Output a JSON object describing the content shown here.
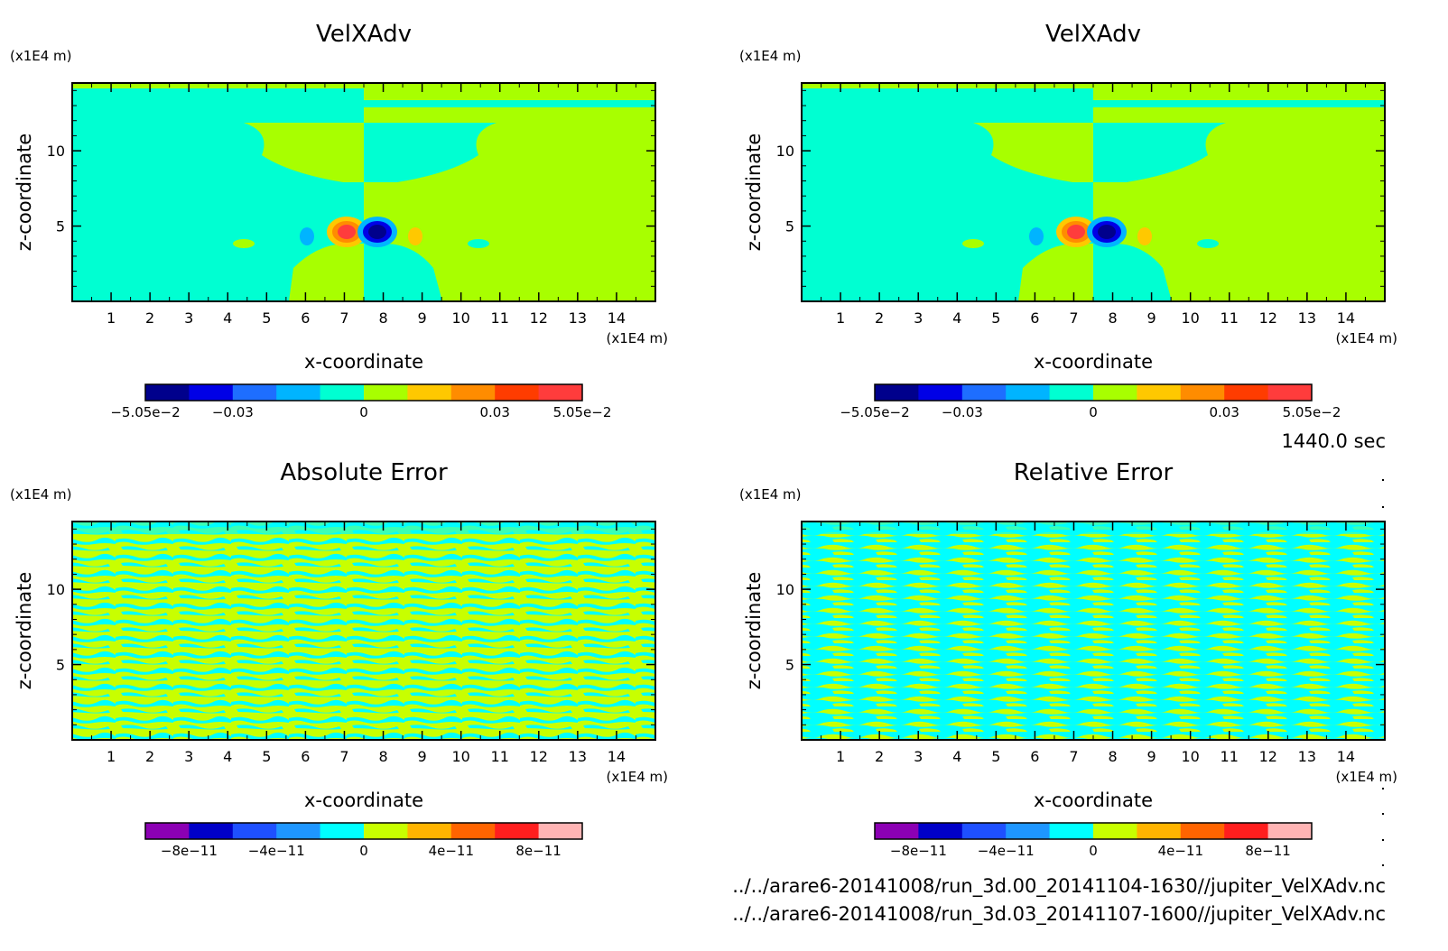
{
  "chart_data": [
    {
      "type": "heatmap",
      "title": "VelXAdv",
      "xlabel": "x-coordinate",
      "ylabel": "z-coordinate",
      "x_unit": "(x1E4 m)",
      "y_unit": "(x1E4 m)",
      "xlim": [
        0,
        15
      ],
      "ylim": [
        0,
        14.5
      ],
      "x_ticks": [
        "1",
        "2",
        "3",
        "4",
        "5",
        "6",
        "7",
        "8",
        "9",
        "10",
        "11",
        "12",
        "13",
        "14"
      ],
      "y_ticks": [
        "5",
        "10"
      ],
      "colorbar_labels": [
        "−5.05e−2",
        "−0.03",
        "0",
        "0.03",
        "5.05e−2"
      ],
      "colorbar_colors": [
        "#00008c",
        "#0000e6",
        "#1e6eff",
        "#00b4ff",
        "#00ffd2",
        "#a8ff00",
        "#ffc800",
        "#ff8c00",
        "#ff3c00",
        "#ff3c3c"
      ],
      "min": -0.0505,
      "max": 0.0505
    },
    {
      "type": "heatmap",
      "title": "VelXAdv",
      "xlabel": "x-coordinate",
      "ylabel": "z-coordinate",
      "x_unit": "(x1E4 m)",
      "y_unit": "(x1E4 m)",
      "xlim": [
        0,
        15
      ],
      "ylim": [
        0,
        14.5
      ],
      "x_ticks": [
        "1",
        "2",
        "3",
        "4",
        "5",
        "6",
        "7",
        "8",
        "9",
        "10",
        "11",
        "12",
        "13",
        "14"
      ],
      "y_ticks": [
        "5",
        "10"
      ],
      "colorbar_labels": [
        "−5.05e−2",
        "−0.03",
        "0",
        "0.03",
        "5.05e−2"
      ],
      "colorbar_colors": [
        "#00008c",
        "#0000e6",
        "#1e6eff",
        "#00b4ff",
        "#00ffd2",
        "#a8ff00",
        "#ffc800",
        "#ff8c00",
        "#ff3c00",
        "#ff3c3c"
      ],
      "min": -0.0505,
      "max": 0.0505
    },
    {
      "type": "heatmap",
      "title": "Absolute Error",
      "xlabel": "x-coordinate",
      "ylabel": "z-coordinate",
      "x_unit": "(x1E4 m)",
      "y_unit": "(x1E4 m)",
      "xlim": [
        0,
        15
      ],
      "ylim": [
        0,
        14.5
      ],
      "x_ticks": [
        "1",
        "2",
        "3",
        "4",
        "5",
        "6",
        "7",
        "8",
        "9",
        "10",
        "11",
        "12",
        "13",
        "14"
      ],
      "y_ticks": [
        "5",
        "10"
      ],
      "colorbar_labels": [
        "−8e−11",
        "−4e−11",
        "0",
        "4e−11",
        "8e−11"
      ],
      "colorbar_colors": [
        "#8c00b4",
        "#0000c8",
        "#1e50ff",
        "#1e96ff",
        "#00ffff",
        "#c8ff00",
        "#ffb400",
        "#ff6400",
        "#ff1e1e",
        "#ffb4b4"
      ]
    },
    {
      "type": "heatmap",
      "title": "Relative Error",
      "xlabel": "x-coordinate",
      "ylabel": "z-coordinate",
      "x_unit": "(x1E4 m)",
      "y_unit": "(x1E4 m)",
      "xlim": [
        0,
        15
      ],
      "ylim": [
        0,
        14.5
      ],
      "x_ticks": [
        "1",
        "2",
        "3",
        "4",
        "5",
        "6",
        "7",
        "8",
        "9",
        "10",
        "11",
        "12",
        "13",
        "14"
      ],
      "y_ticks": [
        "5",
        "10"
      ],
      "colorbar_labels": [
        "−8e−11",
        "−4e−11",
        "0",
        "4e−11",
        "8e−11"
      ],
      "colorbar_colors": [
        "#8c00b4",
        "#0000c8",
        "#1e50ff",
        "#1e96ff",
        "#00ffff",
        "#c8ff00",
        "#ffb400",
        "#ff6400",
        "#ff1e1e",
        "#ffb4b4"
      ]
    }
  ],
  "time_label": "1440.0 sec",
  "file_paths": [
    "../../arare6-20141008/run_3d.00_20141104-1630//jupiter_VelXAdv.nc",
    "../../arare6-20141008/run_3d.03_20141107-1600//jupiter_VelXAdv.nc"
  ]
}
